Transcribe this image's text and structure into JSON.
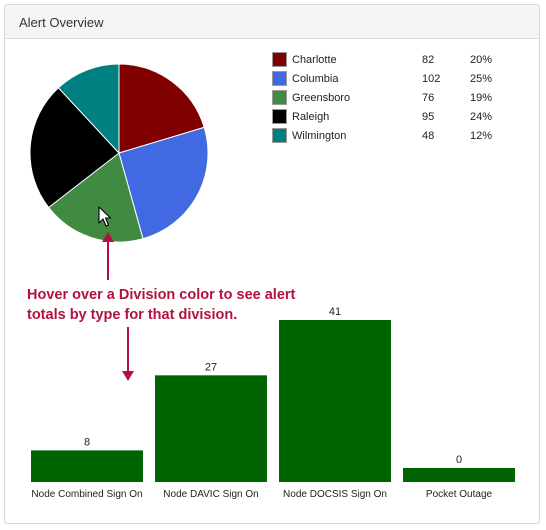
{
  "panel": {
    "title": "Alert Overview"
  },
  "annotation": {
    "text": "Hover over a Division color to see alert totals by type for that division."
  },
  "icons": {
    "cursor": "mouse-pointer-icon",
    "arrow": "arrow-icon"
  },
  "chart_data": [
    {
      "type": "pie",
      "title": "",
      "slices": [
        {
          "label": "Charlotte",
          "value": 82,
          "percent": "20%",
          "color": "#800000"
        },
        {
          "label": "Columbia",
          "value": 102,
          "percent": "25%",
          "color": "#4169e1"
        },
        {
          "label": "Greensboro",
          "value": 76,
          "percent": "19%",
          "color": "#418a41"
        },
        {
          "label": "Raleigh",
          "value": 95,
          "percent": "24%",
          "color": "#000000"
        },
        {
          "label": "Wilmington",
          "value": 48,
          "percent": "12%",
          "color": "#008080"
        }
      ],
      "legend_placement": "right",
      "highlighted": "Greensboro"
    },
    {
      "type": "bar",
      "title": "",
      "categories": [
        "Node Combined Sign On",
        "Node DAVIC Sign On",
        "Node DOCSIS Sign On",
        "Pocket Outage"
      ],
      "values": [
        8,
        27,
        41,
        0
      ],
      "color": "#006400",
      "data_labels": true,
      "grid": false
    }
  ]
}
